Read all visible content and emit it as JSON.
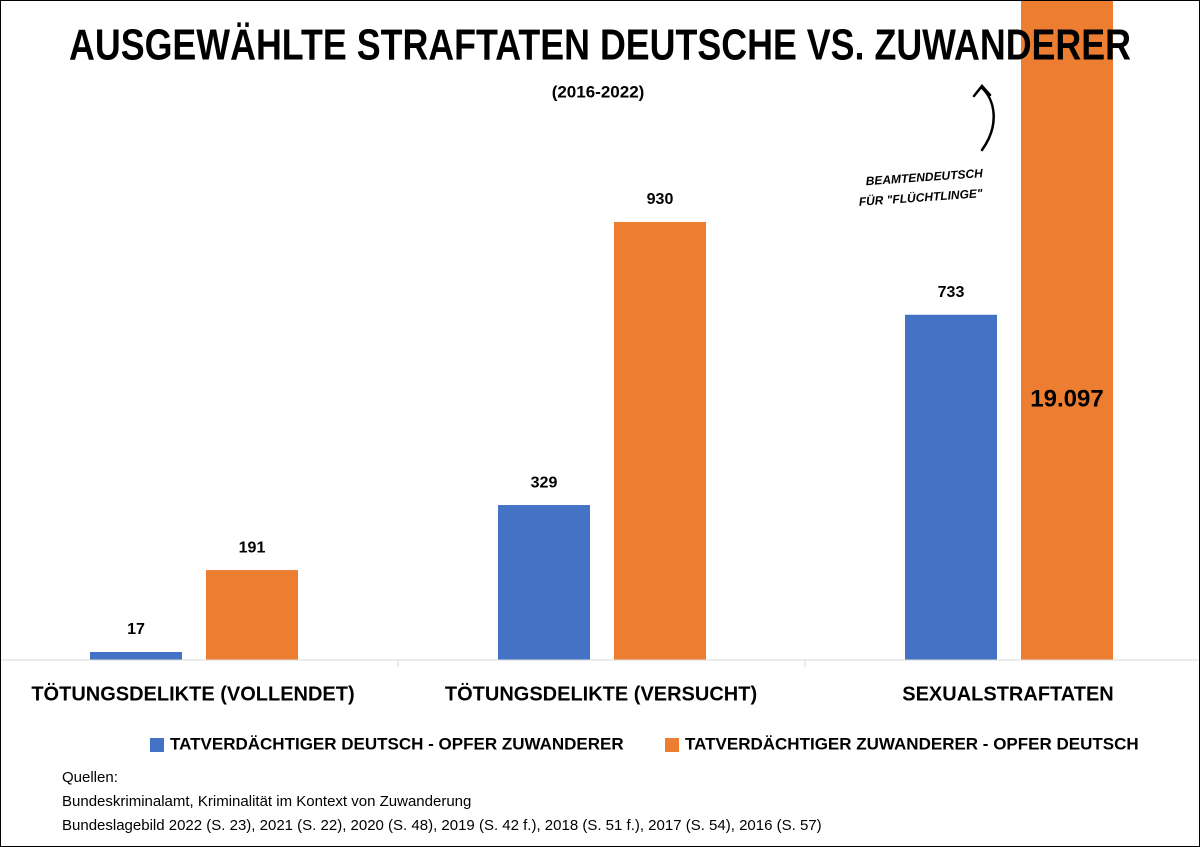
{
  "chart_data": {
    "type": "bar",
    "title": "AUSGEWÄHLTE STRAFTATEN DEUTSCHE VS. ZUWANDERER",
    "subtitle": "(2016-2022)",
    "categories": [
      "TÖTUNGSDELIKTE (VOLLENDET)",
      "TÖTUNGSDELIKTE (VERSUCHT)",
      "SEXUALSTRAFTATEN"
    ],
    "series": [
      {
        "name": "TATVERDÄCHTIGER DEUTSCH - OPFER ZUWANDERER",
        "color": "#4472c4",
        "values": [
          17,
          329,
          733
        ]
      },
      {
        "name": "TATVERDÄCHTIGER ZUWANDERER - OPFER DEUTSCH",
        "color": "#ed7d31",
        "values": [
          191,
          930,
          19097
        ],
        "value_labels": [
          "191",
          "930",
          "19.097"
        ]
      }
    ],
    "annotation": [
      "BEAMTENDEUTSCH",
      "FÜR \"FLÜCHTLINGE\""
    ],
    "sources": [
      "Quellen:",
      "Bundeskriminalamt, Kriminalität im Kontext von Zuwanderung",
      "Bundeslagebild 2022 (S. 23), 2021 (S. 22), 2020 (S. 48), 2019 (S. 42 f.), 2018 (S. 51 f.), 2017 (S. 54), 2016 (S. 57)"
    ]
  }
}
